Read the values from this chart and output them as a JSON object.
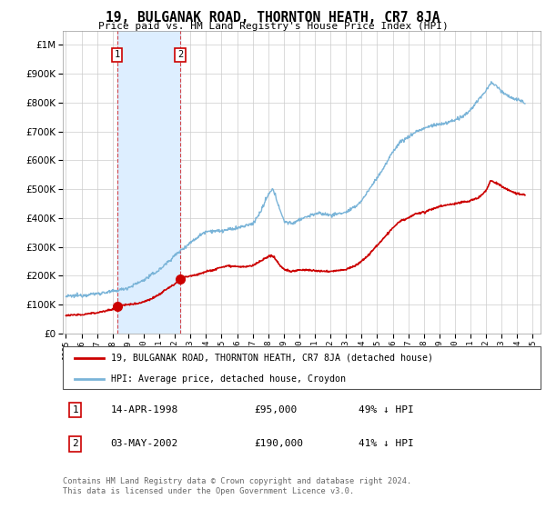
{
  "title": "19, BULGANAK ROAD, THORNTON HEATH, CR7 8JA",
  "subtitle": "Price paid vs. HM Land Registry's House Price Index (HPI)",
  "legend_line1": "19, BULGANAK ROAD, THORNTON HEATH, CR7 8JA (detached house)",
  "legend_line2": "HPI: Average price, detached house, Croydon",
  "transaction1_date": "14-APR-1998",
  "transaction1_price": "£95,000",
  "transaction1_hpi": "49% ↓ HPI",
  "transaction1_year": 1998.29,
  "transaction1_value": 95000,
  "transaction2_date": "03-MAY-2002",
  "transaction2_price": "£190,000",
  "transaction2_hpi": "41% ↓ HPI",
  "transaction2_year": 2002.34,
  "transaction2_value": 190000,
  "footer": "Contains HM Land Registry data © Crown copyright and database right 2024.\nThis data is licensed under the Open Government Licence v3.0.",
  "hpi_color": "#7ab4d8",
  "price_color": "#cc0000",
  "shade_color": "#ddeeff",
  "background_color": "#ffffff",
  "grid_color": "#cccccc",
  "ylim": [
    0,
    1050000
  ],
  "xlim_start": 1994.8,
  "xlim_end": 2025.5,
  "hpi_anchors": [
    [
      1995.0,
      128000
    ],
    [
      1996.0,
      132000
    ],
    [
      1997.0,
      138000
    ],
    [
      1998.0,
      145000
    ],
    [
      1999.0,
      158000
    ],
    [
      2000.0,
      185000
    ],
    [
      2001.0,
      220000
    ],
    [
      2002.0,
      270000
    ],
    [
      2003.0,
      315000
    ],
    [
      2004.0,
      355000
    ],
    [
      2005.0,
      355000
    ],
    [
      2006.0,
      365000
    ],
    [
      2007.0,
      380000
    ],
    [
      2007.5,
      420000
    ],
    [
      2008.0,
      480000
    ],
    [
      2008.3,
      500000
    ],
    [
      2008.7,
      440000
    ],
    [
      2009.0,
      390000
    ],
    [
      2009.5,
      380000
    ],
    [
      2010.0,
      395000
    ],
    [
      2010.5,
      405000
    ],
    [
      2011.0,
      415000
    ],
    [
      2011.5,
      415000
    ],
    [
      2012.0,
      410000
    ],
    [
      2012.5,
      415000
    ],
    [
      2013.0,
      420000
    ],
    [
      2013.5,
      435000
    ],
    [
      2014.0,
      460000
    ],
    [
      2014.5,
      500000
    ],
    [
      2015.0,
      540000
    ],
    [
      2015.5,
      580000
    ],
    [
      2016.0,
      630000
    ],
    [
      2016.5,
      665000
    ],
    [
      2017.0,
      680000
    ],
    [
      2017.5,
      700000
    ],
    [
      2018.0,
      710000
    ],
    [
      2018.5,
      720000
    ],
    [
      2019.0,
      725000
    ],
    [
      2019.5,
      730000
    ],
    [
      2020.0,
      740000
    ],
    [
      2020.5,
      750000
    ],
    [
      2021.0,
      775000
    ],
    [
      2021.5,
      810000
    ],
    [
      2022.0,
      840000
    ],
    [
      2022.3,
      870000
    ],
    [
      2022.7,
      855000
    ],
    [
      2023.0,
      840000
    ],
    [
      2023.5,
      820000
    ],
    [
      2024.0,
      810000
    ],
    [
      2024.5,
      800000
    ]
  ],
  "price_anchors": [
    [
      1995.0,
      62000
    ],
    [
      1996.0,
      65000
    ],
    [
      1997.0,
      72000
    ],
    [
      1997.5,
      78000
    ],
    [
      1998.0,
      83000
    ],
    [
      1998.29,
      95000
    ],
    [
      1998.5,
      97000
    ],
    [
      1999.0,
      100000
    ],
    [
      1999.5,
      103000
    ],
    [
      2000.0,
      110000
    ],
    [
      2000.5,
      120000
    ],
    [
      2001.0,
      135000
    ],
    [
      2001.5,
      155000
    ],
    [
      2002.0,
      170000
    ],
    [
      2002.34,
      190000
    ],
    [
      2002.5,
      193000
    ],
    [
      2003.0,
      200000
    ],
    [
      2003.5,
      205000
    ],
    [
      2004.0,
      215000
    ],
    [
      2004.5,
      220000
    ],
    [
      2005.0,
      230000
    ],
    [
      2005.5,
      235000
    ],
    [
      2006.0,
      232000
    ],
    [
      2006.5,
      230000
    ],
    [
      2007.0,
      235000
    ],
    [
      2007.5,
      250000
    ],
    [
      2008.0,
      265000
    ],
    [
      2008.3,
      270000
    ],
    [
      2008.7,
      240000
    ],
    [
      2009.0,
      222000
    ],
    [
      2009.5,
      215000
    ],
    [
      2010.0,
      220000
    ],
    [
      2010.5,
      220000
    ],
    [
      2011.0,
      218000
    ],
    [
      2011.5,
      215000
    ],
    [
      2012.0,
      215000
    ],
    [
      2012.5,
      218000
    ],
    [
      2013.0,
      222000
    ],
    [
      2013.5,
      232000
    ],
    [
      2014.0,
      250000
    ],
    [
      2014.5,
      275000
    ],
    [
      2015.0,
      305000
    ],
    [
      2015.5,
      335000
    ],
    [
      2016.0,
      365000
    ],
    [
      2016.5,
      390000
    ],
    [
      2017.0,
      400000
    ],
    [
      2017.5,
      415000
    ],
    [
      2018.0,
      420000
    ],
    [
      2018.5,
      430000
    ],
    [
      2019.0,
      440000
    ],
    [
      2019.5,
      445000
    ],
    [
      2020.0,
      450000
    ],
    [
      2020.5,
      455000
    ],
    [
      2021.0,
      460000
    ],
    [
      2021.5,
      470000
    ],
    [
      2022.0,
      495000
    ],
    [
      2022.3,
      530000
    ],
    [
      2022.7,
      520000
    ],
    [
      2023.0,
      510000
    ],
    [
      2023.5,
      495000
    ],
    [
      2024.0,
      485000
    ],
    [
      2024.5,
      480000
    ]
  ]
}
